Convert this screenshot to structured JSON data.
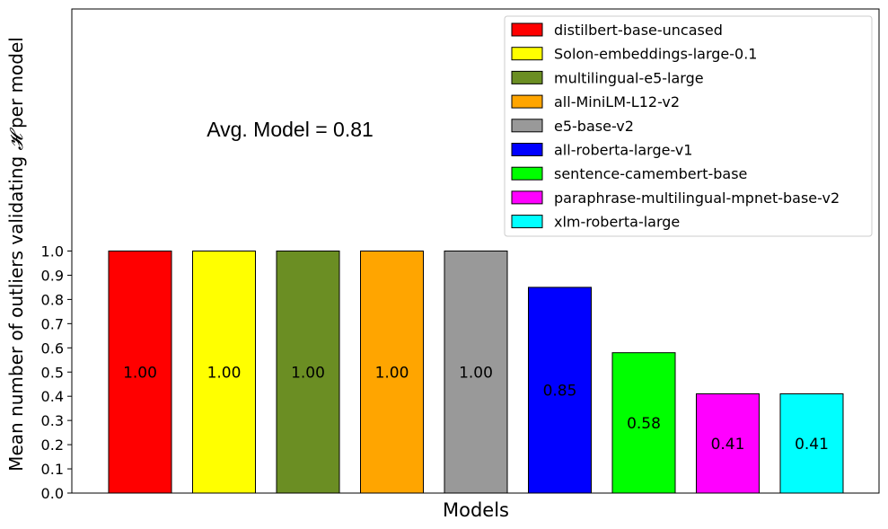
{
  "chart_data": {
    "type": "bar",
    "title": "",
    "xlabel": "Models",
    "ylabel_prefix": "Mean number of outliers validating ",
    "ylabel_symbol": "𝓗",
    "ylabel_suffix": " per model",
    "ylim": [
      0,
      2.0
    ],
    "yticks": [
      "0.0",
      "0.1",
      "0.2",
      "0.3",
      "0.4",
      "0.5",
      "0.6",
      "0.7",
      "0.8",
      "0.9",
      "1.0"
    ],
    "annotation": "Avg. Model = 0.81",
    "legend_position": "top-right",
    "series": [
      {
        "name": "distilbert-base-uncased",
        "value": 1.0,
        "label": "1.00",
        "color": "#ff0000"
      },
      {
        "name": "Solon-embeddings-large-0.1",
        "value": 1.0,
        "label": "1.00",
        "color": "#ffff00"
      },
      {
        "name": "multilingual-e5-large",
        "value": 1.0,
        "label": "1.00",
        "color": "#6b8e23"
      },
      {
        "name": "all-MiniLM-L12-v2",
        "value": 1.0,
        "label": "1.00",
        "color": "#ffa500"
      },
      {
        "name": "e5-base-v2",
        "value": 1.0,
        "label": "1.00",
        "color": "#999999"
      },
      {
        "name": "all-roberta-large-v1",
        "value": 0.85,
        "label": "0.85",
        "color": "#0000ff"
      },
      {
        "name": "sentence-camembert-base",
        "value": 0.58,
        "label": "0.58",
        "color": "#00ff00"
      },
      {
        "name": "paraphrase-multilingual-mpnet-base-v2",
        "value": 0.41,
        "label": "0.41",
        "color": "#ff00ff"
      },
      {
        "name": "xlm-roberta-large",
        "value": 0.41,
        "label": "0.41",
        "color": "#00ffff"
      }
    ]
  }
}
